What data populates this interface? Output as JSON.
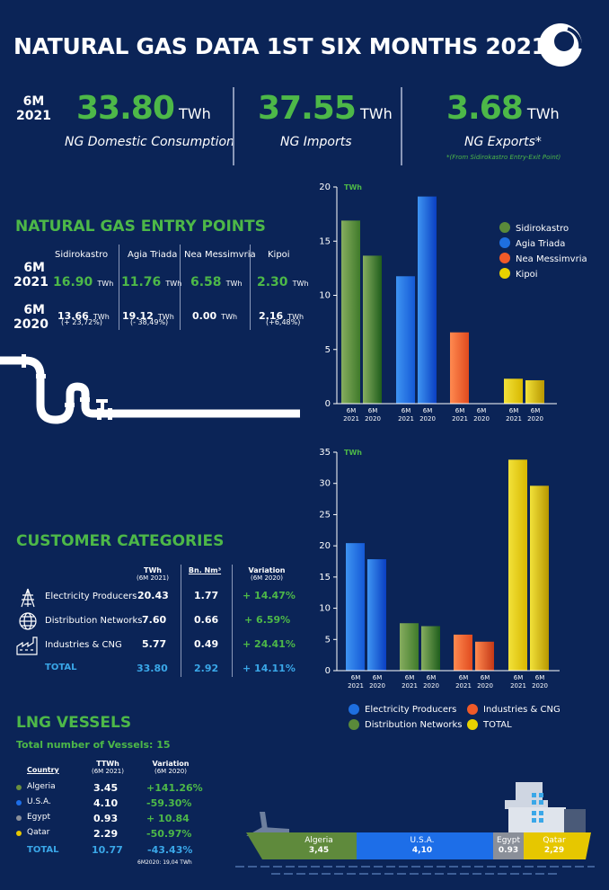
{
  "header": {
    "title": "NATURAL GAS DATA 1ST SIX MONTHS 2021"
  },
  "kpis": {
    "period_a": "6M",
    "period_b": "2021",
    "items": [
      {
        "value": "33.80",
        "unit": "TWh",
        "label": "NG Domestic Consumption"
      },
      {
        "value": "37.55",
        "unit": "TWh",
        "label": "NG Imports"
      },
      {
        "value": "3.68",
        "unit": "TWh",
        "label": "NG Exports*",
        "note": "*(From Sidirokastro Entry-Exit Point)"
      }
    ]
  },
  "entry_points": {
    "title": "NATURAL GAS ENTRY POINTS",
    "columns": [
      "Sidirokastro",
      "Agia Triada",
      "Nea Messimvria",
      "Kipoi"
    ],
    "row2021_label_a": "6M",
    "row2021_label_b": "2021",
    "row2020_label_a": "6M",
    "row2020_label_b": "2020",
    "unit": "TWh",
    "values2021": [
      "16.90",
      "11.76",
      "6.58",
      "2.30"
    ],
    "values2020": [
      "13.66",
      "19.12",
      "0.00",
      "2.16"
    ],
    "variations": [
      "(+ 23,72%)",
      "(- 38,49%)",
      "",
      "(+6,48%)"
    ]
  },
  "customer_categories": {
    "title": "CUSTOMER CATEGORIES",
    "head_twh": "TWh",
    "head_twh_sub": "(6M 2021)",
    "head_bn": "Bn. Nm³",
    "head_var": "Variation",
    "head_var_sub": "(6M 2020)",
    "rows": [
      {
        "name": "Electricity Producers",
        "twh": "20.43",
        "bn": "1.77",
        "var": "+ 14.47%"
      },
      {
        "name": "Distribution Networks",
        "twh": "7.60",
        "bn": "0.66",
        "var": "+ 6.59%"
      },
      {
        "name": "Industries & CNG",
        "twh": "5.77",
        "bn": "0.49",
        "var": "+ 24.41%"
      }
    ],
    "total": {
      "name": "TOTAL",
      "twh": "33.80",
      "bn": "2.92",
      "var": "+ 14.11%"
    }
  },
  "lng": {
    "title": "LNG VESSELS",
    "subtitle": "Total number of Vessels: 15",
    "head_country": "Country",
    "head_ttwh": "TTWh",
    "head_ttwh_sub": "(6M 2021)",
    "head_var": "Variation",
    "head_var_sub": "(6M 2020)",
    "rows": [
      {
        "country": "Algeria",
        "ttwh": "3.45",
        "var": "+141.26%",
        "color": "#6a8f3e"
      },
      {
        "country": "U.S.A.",
        "ttwh": "4.10",
        "var": "-59.30%",
        "color": "#1d6ee8"
      },
      {
        "country": "Egypt",
        "ttwh": "0.93",
        "var": "+ 10.84",
        "color": "#8a8f99"
      },
      {
        "country": "Qatar",
        "ttwh": "2.29",
        "var": "-50.97%",
        "color": "#e6c700"
      }
    ],
    "total": {
      "country": "TOTAL",
      "ttwh": "10.77",
      "var": "-43.43%"
    },
    "footnote": "6M2020: 19,04 TWh",
    "ship_labels": [
      {
        "name": "Algeria",
        "value": "3,45"
      },
      {
        "name": "U.S.A.",
        "value": "4,10"
      },
      {
        "name": "Egypt",
        "value": "0.93"
      },
      {
        "name": "Qatar",
        "value": "2,29"
      }
    ]
  },
  "chart_data": [
    {
      "type": "bar",
      "ylabel": "TWh",
      "ylim": [
        0,
        20
      ],
      "yticks": [
        0,
        5,
        10,
        15,
        20
      ],
      "groups": [
        "Sidirokastro",
        "Agia Triada",
        "Nea Messimvria",
        "Kipoi"
      ],
      "xlabels": [
        [
          "6M",
          "2021"
        ],
        [
          "6M",
          "2020"
        ]
      ],
      "values2021": [
        16.9,
        11.76,
        6.58,
        2.3
      ],
      "values2020": [
        13.66,
        19.12,
        0.0,
        2.16
      ],
      "legend": [
        {
          "name": "Sidirokastro",
          "color": "#5a8a3a"
        },
        {
          "name": "Agia Triada",
          "color": "#1e6fe0"
        },
        {
          "name": "Nea Messimvria",
          "color": "#f05a28"
        },
        {
          "name": "Kipoi",
          "color": "#e8d200"
        }
      ]
    },
    {
      "type": "bar",
      "ylabel": "TWh",
      "ylim": [
        0,
        35
      ],
      "yticks": [
        0,
        5,
        10,
        15,
        20,
        25,
        30,
        35
      ],
      "groups": [
        "Electricity Producers",
        "Distribution Networks",
        "Industries & CNG",
        "TOTAL"
      ],
      "xlabels": [
        [
          "6M",
          "2021"
        ],
        [
          "6M",
          "2020"
        ]
      ],
      "values2021": [
        20.43,
        7.6,
        5.77,
        33.8
      ],
      "values2020": [
        17.85,
        7.13,
        4.64,
        29.62
      ],
      "legend": [
        {
          "name": "Electricity Producers",
          "color": "#1e6fe0"
        },
        {
          "name": "Industries & CNG",
          "color": "#f05a28"
        },
        {
          "name": "Distribution Networks",
          "color": "#5a8a3a"
        },
        {
          "name": "TOTAL",
          "color": "#e8d200"
        }
      ]
    }
  ]
}
